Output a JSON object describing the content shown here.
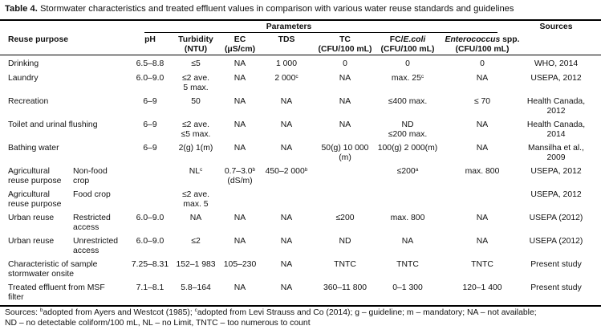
{
  "table": {
    "label": "Table 4.",
    "caption": "Stormwater characteristics and treated effluent values in comparison with various water reuse standards and guidelines",
    "group_header": "Parameters",
    "columns": {
      "reuse": "Reuse purpose",
      "ph": "pH",
      "turb1": "Turbidity",
      "turb2": "(NTU)",
      "ec1": "EC",
      "ec2": "(μS/cm)",
      "tds": "TDS",
      "tc1": "TC",
      "tc2": "(CFU/100 mL)",
      "fc1a": "FC/",
      "fc1b": "E.coli",
      "fc2": "(CFU/100 mL)",
      "ent1a": "Enterococcus",
      "ent1b": " spp.",
      "ent2": "(CFU/100 mL)",
      "src": "Sources"
    },
    "rows": [
      {
        "reuse": "Drinking",
        "ph": "6.5–8.8",
        "turb": "≤5",
        "ec": "NA",
        "tds": "1 000",
        "tc": "0",
        "fc": "0",
        "ent": "0",
        "src": "WHO, 2014"
      },
      {
        "reuse": "Laundry",
        "ph": "6.0–9.0",
        "turb": "≤2 ave.",
        "turb_b": "5 max.",
        "ec": "NA",
        "tds": "2 000",
        "tds_sup": "c",
        "tc": "NA",
        "fc": "max. 25",
        "fc_sup": "c",
        "ent": "NA",
        "src": "USEPA, 2012"
      },
      {
        "reuse": "Recreation",
        "ph": "6–9",
        "turb": "50",
        "ec": "NA",
        "tds": "NA",
        "tc": "NA",
        "fc": "≤400 max.",
        "ent": "≤ 70",
        "src": "Health Canada,",
        "src_b": "2012"
      },
      {
        "reuse": "Toilet and urinal flushing",
        "ph": "6–9",
        "turb": "≤2 ave.",
        "turb_b": "≤5 max.",
        "ec": "NA",
        "tds": "NA",
        "tc": "NA",
        "fc": "ND",
        "fc_b": "≤200 max.",
        "ent": "NA",
        "src": "Health Canada,",
        "src_b": "2014"
      },
      {
        "reuse": "Bathing water",
        "ph": "6–9",
        "turb": "2(g) 1(m)",
        "ec": "NA",
        "tds": "NA",
        "tc": "50(g) 10 000",
        "tc_b": "(m)",
        "fc": "100(g) 2 000(m)",
        "ent": "NA",
        "src": "Mansilha et al.,",
        "src_b": "2009"
      },
      {
        "reuse": "Agricultural",
        "reuse_b": "reuse purpose",
        "sub": "Non-food",
        "sub_b": "crop",
        "turb": "NL",
        "turb_sup": "c",
        "ec": "0.7–3.0",
        "ec_sup": "b",
        "ec_b": "(dS/m)",
        "tds": "450–2 000",
        "tds_sup": "b",
        "fc": "≤200",
        "fc_sup": "a",
        "ent": "max. 800",
        "src": "USEPA, 2012"
      },
      {
        "reuse": "Agricultural",
        "reuse_b": "reuse purpose",
        "sub": "Food crop",
        "turb": "≤2 ave.",
        "turb_b": "max. 5",
        "src": "USEPA, 2012"
      },
      {
        "reuse": "Urban reuse",
        "sub": "Restricted",
        "sub_b": "access",
        "ph": "6.0–9.0",
        "turb": "NA",
        "ec": "NA",
        "tds": "NA",
        "tc": "≤200",
        "fc": "max. 800",
        "ent": "NA",
        "src": "USEPA (2012)"
      },
      {
        "reuse": "Urban reuse",
        "sub": "Unrestricted",
        "sub_b": "access",
        "ph": "6.0–9.0",
        "turb": "≤2",
        "ec": "NA",
        "tds": "NA",
        "tc": "ND",
        "fc": "NA",
        "ent": "NA",
        "src": "USEPA (2012)"
      },
      {
        "reuse": "Characteristic of sample",
        "reuse_b": "stormwater onsite",
        "ph": "7.25–8.31",
        "turb": "152–1 983",
        "ec": "105–230",
        "tds": "NA",
        "tc": "TNTC",
        "fc": "TNTC",
        "ent": "TNTC",
        "src": "Present study"
      },
      {
        "reuse": "Treated effluent from MSF",
        "reuse_b": "filter",
        "ph": "7.1–8.1",
        "turb": "5.8–164",
        "ec": "NA",
        "tds": "NA",
        "tc": "360–11 800",
        "fc": "0–1 300",
        "ent": "120–1 400",
        "src": "Present study"
      }
    ],
    "footnote": {
      "l1a": "Sources: ",
      "s1": "b",
      "l1b": "adopted from Ayers and Westcot (1985); ",
      "s2": "c",
      "l1c": "adopted from Levi Strauss and Co (2014); g – guideline;  m – mandatory; NA – not available;",
      "l2": "ND – no detectable coliform/100 mL, NL – no Limit, TNTC – too numerous to count"
    }
  }
}
